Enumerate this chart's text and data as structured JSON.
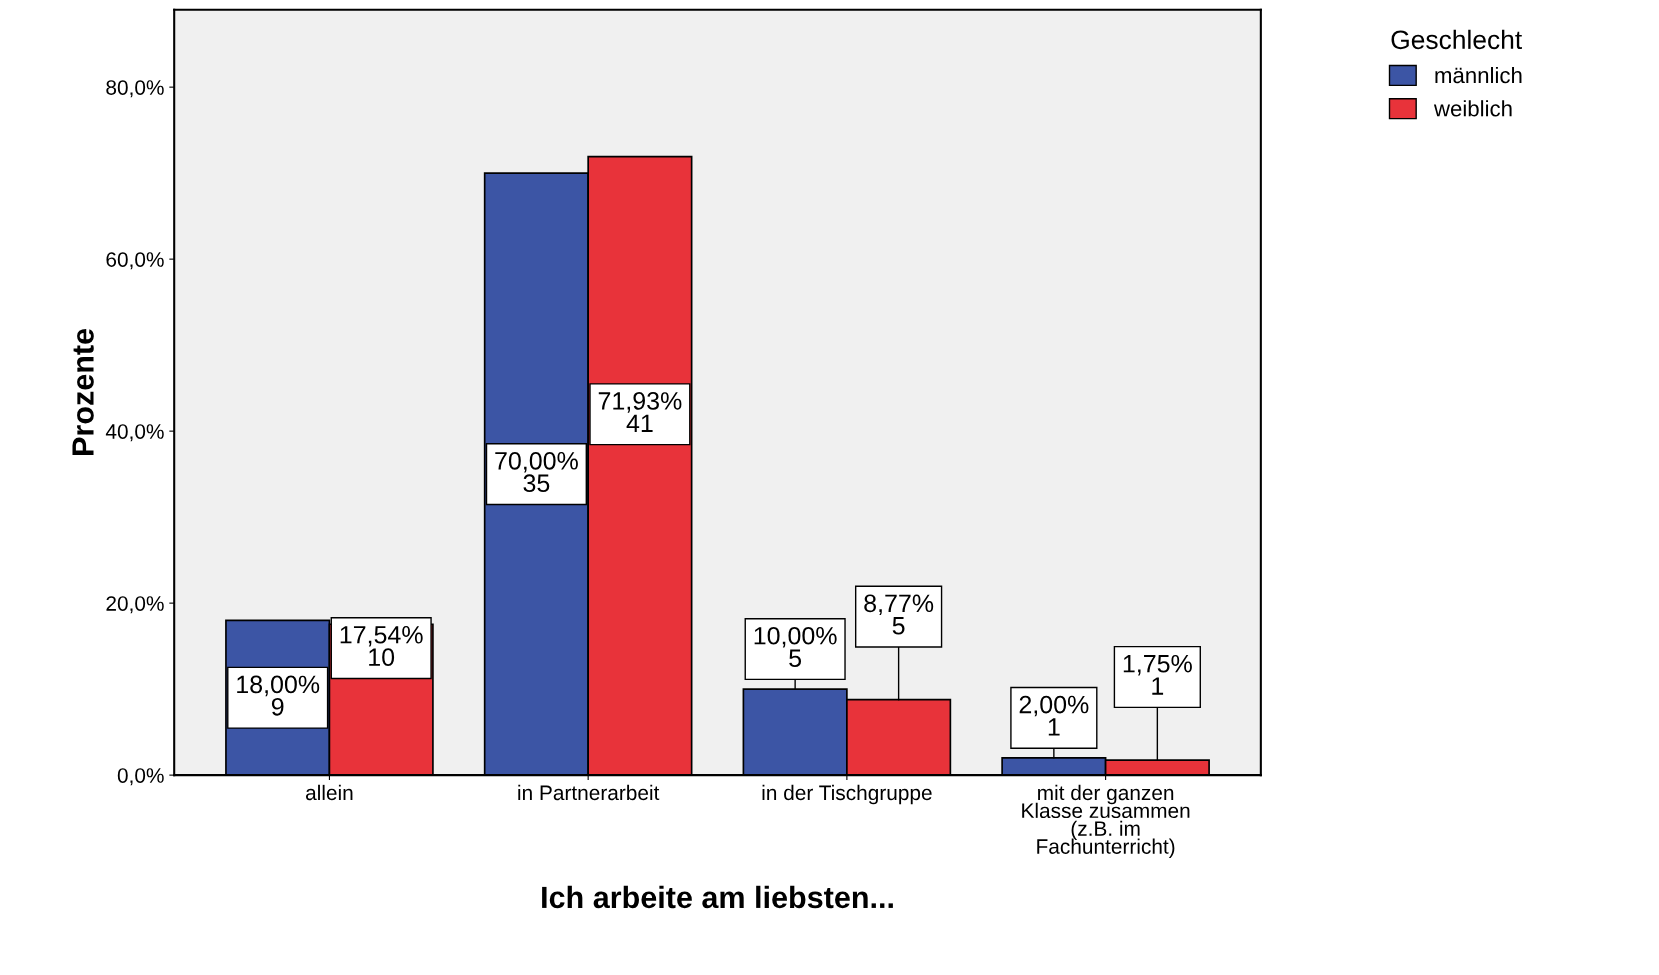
{
  "chart_data": {
    "type": "bar",
    "xlabel": "Ich arbeite am liebsten...",
    "ylabel": "Prozente",
    "legend_title": "Geschlecht",
    "categories": [
      "allein",
      "in Partnerarbeit",
      "in der Tischgruppe",
      "mit der ganzen\nKlasse zusammen\n(z.B. im\nFachunterricht)"
    ],
    "series": [
      {
        "name": "männlich",
        "color": "#3c55a5",
        "values": [
          18.0,
          70.0,
          10.0,
          2.0
        ],
        "value_labels": [
          "18,00%\n9",
          "70,00%\n35",
          "10,00%\n5",
          "2,00%\n1"
        ]
      },
      {
        "name": "weiblich",
        "color": "#e8333a",
        "values": [
          17.54,
          71.93,
          8.77,
          1.75
        ],
        "value_labels": [
          "17,54%\n10",
          "71,93%\n41",
          "8,77%\n5",
          "1,75%\n1"
        ]
      }
    ],
    "ylim": [
      0,
      89
    ],
    "yticks": [
      {
        "value": 0,
        "label": "0,0%"
      },
      {
        "value": 20,
        "label": "20,0%"
      },
      {
        "value": 40,
        "label": "40,0%"
      },
      {
        "value": 60,
        "label": "60,0%"
      },
      {
        "value": 80,
        "label": "80,0%"
      }
    ],
    "grid": false,
    "legend": "top right"
  }
}
